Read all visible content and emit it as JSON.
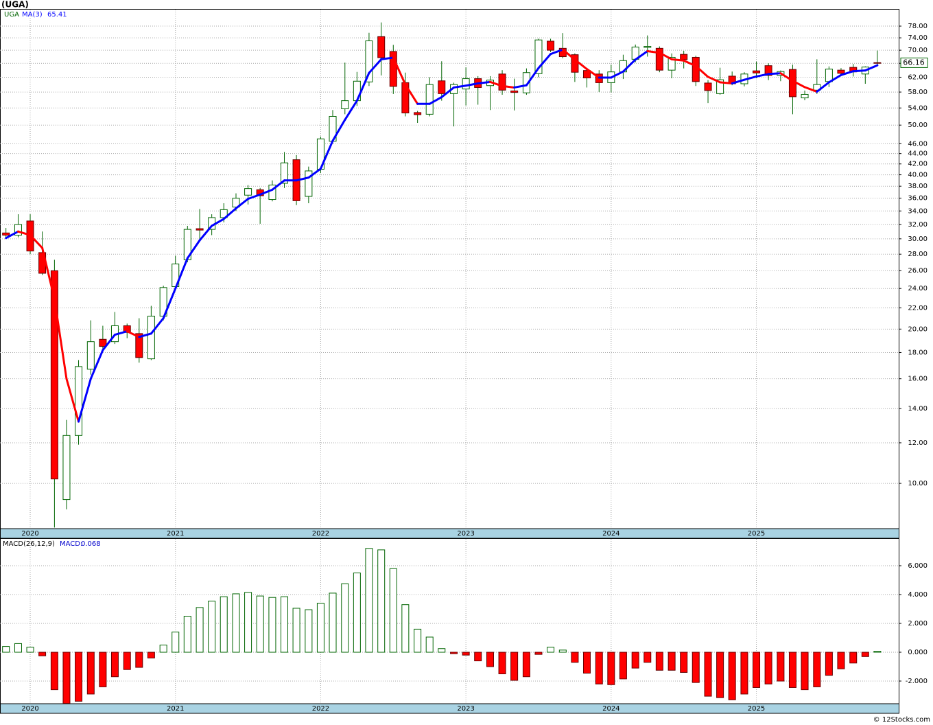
{
  "chart_data": [
    {
      "type": "candlestick",
      "title": "(UGA)",
      "name": "UGA",
      "log_y": true,
      "grid": true,
      "up_color": "#006400",
      "down_color": "#ff0000",
      "x": [
        2019.833,
        2019.917,
        2020.0,
        2020.083,
        2020.167,
        2020.25,
        2020.333,
        2020.417,
        2020.5,
        2020.583,
        2020.667,
        2020.75,
        2020.833,
        2020.917,
        2021.0,
        2021.083,
        2021.167,
        2021.25,
        2021.333,
        2021.417,
        2021.5,
        2021.583,
        2021.667,
        2021.75,
        2021.833,
        2021.917,
        2022.0,
        2022.083,
        2022.167,
        2022.25,
        2022.333,
        2022.417,
        2022.5,
        2022.583,
        2022.667,
        2022.75,
        2022.833,
        2022.917,
        2023.0,
        2023.083,
        2023.167,
        2023.25,
        2023.333,
        2023.417,
        2023.5,
        2023.583,
        2023.667,
        2023.75,
        2023.833,
        2023.917,
        2024.0,
        2024.083,
        2024.167,
        2024.25,
        2024.333,
        2024.417,
        2024.5,
        2024.583,
        2024.667,
        2024.75,
        2024.833,
        2024.917,
        2025.0,
        2025.083,
        2025.167,
        2025.25,
        2025.333,
        2025.417,
        2025.5,
        2025.583,
        2025.667,
        2025.75,
        2025.833
      ],
      "open": [
        30.8,
        30.5,
        32.5,
        28.2,
        26,
        9.3,
        12.4,
        16.7,
        19.1,
        18.9,
        20.3,
        19.6,
        17.5,
        21.2,
        24.2,
        27.3,
        31.4,
        31.3,
        33.0,
        34.6,
        36.5,
        37.4,
        35.8,
        38.5,
        42.8,
        36.3,
        41,
        46.5,
        53.8,
        55.8,
        60.7,
        74.4,
        69.6,
        60.5,
        52.9,
        52.5,
        61,
        57.6,
        58.8,
        61.6,
        59.7,
        62.9,
        58.3,
        57.8,
        63,
        72.9,
        70.6,
        68.6,
        63.9,
        62.9,
        60.5,
        63.5,
        67.2,
        70.9,
        70.6,
        64,
        68.7,
        67.8,
        60.4,
        57.6,
        62.3,
        60.2,
        63.8,
        65.3,
        62.5,
        64.2,
        56.5,
        58.5,
        60.8,
        64.0,
        64.8,
        62.9,
        66.2
      ],
      "high": [
        31.5,
        33.5,
        33.5,
        31,
        27.3,
        13.3,
        17.4,
        20.8,
        20.3,
        21.6,
        20.5,
        21,
        22.2,
        24.3,
        27.8,
        31.8,
        34.3,
        33.5,
        35.2,
        36.8,
        38.2,
        37.7,
        39.0,
        44.3,
        43.7,
        41.5,
        47.5,
        53.5,
        66.2,
        63.5,
        75.7,
        79.3,
        71.7,
        63.3,
        53.3,
        62,
        66.6,
        60.5,
        64.8,
        62.3,
        62.3,
        64,
        61.6,
        64.5,
        73.7,
        73.7,
        75.6,
        69,
        64.5,
        64,
        65.6,
        68.6,
        71.8,
        74.8,
        71.2,
        69,
        69.8,
        68.3,
        61.2,
        64.7,
        63.6,
        63.4,
        66.5,
        66,
        63.9,
        65.6,
        58.4,
        67.2,
        65.1,
        64.6,
        65.8,
        65.1,
        69.9
      ],
      "low": [
        30.0,
        30.2,
        28,
        25.5,
        8.2,
        8.9,
        11.9,
        16.3,
        18.2,
        18.7,
        19.2,
        17.2,
        17.4,
        20.8,
        24,
        27.0,
        29.8,
        30.5,
        32.3,
        34,
        35,
        32.1,
        35.5,
        37.7,
        34.9,
        35.2,
        40.3,
        46,
        52.5,
        54.5,
        59.6,
        62.5,
        57.5,
        52,
        50.5,
        52,
        55.8,
        49.7,
        54.6,
        54.8,
        53.5,
        57.3,
        53.4,
        57.3,
        62,
        69.4,
        67.5,
        60.7,
        59.2,
        58,
        57.9,
        61.5,
        66.3,
        68,
        63.4,
        61.7,
        64.5,
        59.6,
        55.2,
        57.3,
        59.8,
        59.5,
        61.7,
        61.2,
        60.9,
        52.5,
        55.9,
        57.5,
        59.3,
        62.7,
        62.2,
        60.2,
        65.2
      ],
      "close": [
        30.5,
        32.0,
        28.4,
        25.7,
        10.2,
        12.4,
        16.9,
        18.9,
        18.5,
        20.3,
        19.7,
        17.6,
        21.2,
        24.1,
        26.8,
        31.3,
        31.2,
        33.0,
        34.2,
        36,
        37.6,
        36.4,
        38.2,
        42.2,
        35.6,
        40.7,
        47,
        52.0,
        55.8,
        60.9,
        73,
        67.7,
        59.5,
        52.8,
        52.4,
        60,
        57.6,
        60,
        61.6,
        59.2,
        61.2,
        58.5,
        57.9,
        63.3,
        73.3,
        70,
        68,
        63.4,
        61.8,
        60.5,
        63.5,
        66.8,
        71,
        71.2,
        64,
        67.8,
        67.1,
        60.8,
        58.4,
        61.3,
        60.2,
        62.9,
        63.2,
        62.5,
        63.6,
        56.8,
        57.4,
        60,
        64.3,
        63.1,
        63.5,
        64.9,
        66.16
      ],
      "series": [
        {
          "name": "MA(3)",
          "color": "#0000ff",
          "down_color": "#ff0000",
          "values": [
            30.1,
            31,
            30.5,
            28.8,
            22.9,
            16.0,
            13.2,
            16,
            18.2,
            19.5,
            19.8,
            19.3,
            19.6,
            21,
            24.0,
            27.5,
            29.8,
            31.8,
            32.8,
            34.4,
            35.9,
            36.6,
            37.4,
            39,
            39,
            39.5,
            41.1,
            46.6,
            51.2,
            55.8,
            63.2,
            67.2,
            67.7,
            60,
            55,
            55,
            56.7,
            59.2,
            59.7,
            60.3,
            60.7,
            59.6,
            59.2,
            59.8,
            64.6,
            68.8,
            70.2,
            67.1,
            64.3,
            61.9,
            61.9,
            63.6,
            67.1,
            69.7,
            69.2,
            67.2,
            66.8,
            65.2,
            62.1,
            60.6,
            60.3,
            61.3,
            62.2,
            62.9,
            63.1,
            61,
            59.3,
            58.1,
            60.6,
            62.6,
            63.7,
            63.9,
            65.41
          ]
        }
      ],
      "xlim": [
        2019.792,
        2025.98
      ],
      "xticks": [
        2020,
        2021,
        2022,
        2023,
        2024,
        2025
      ],
      "ylim": [
        8.16,
        84.0
      ],
      "yticks": [
        {
          "value": 10,
          "label": "10.00"
        },
        {
          "value": 12,
          "label": "12.00"
        },
        {
          "value": 14,
          "label": "14.00"
        },
        {
          "value": 16,
          "label": "16.00"
        },
        {
          "value": 18,
          "label": "18.00"
        },
        {
          "value": 20,
          "label": "20.00"
        },
        {
          "value": 22,
          "label": "22.00"
        },
        {
          "value": 24,
          "label": "24.00"
        },
        {
          "value": 26,
          "label": "26.00"
        },
        {
          "value": 28,
          "label": "28.00"
        },
        {
          "value": 30,
          "label": "30.00"
        },
        {
          "value": 32,
          "label": "32.00"
        },
        {
          "value": 34,
          "label": "34.00"
        },
        {
          "value": 36,
          "label": "36.00"
        },
        {
          "value": 38,
          "label": "38.00"
        },
        {
          "value": 40,
          "label": "40.00"
        },
        {
          "value": 42,
          "label": "42.00"
        },
        {
          "value": 44,
          "label": "44.00"
        },
        {
          "value": 46,
          "label": "46.00"
        },
        {
          "value": 50,
          "label": "50.00"
        },
        {
          "value": 54,
          "label": "54.00"
        },
        {
          "value": 58,
          "label": "58.00"
        },
        {
          "value": 62,
          "label": "62.00"
        },
        {
          "value": 66,
          "label": "66.00"
        },
        {
          "value": 70,
          "label": "70.00"
        },
        {
          "value": 74,
          "label": "74.00"
        },
        {
          "value": 78,
          "label": "78.00"
        }
      ]
    },
    {
      "type": "bar",
      "grid": true,
      "value_caption": "MACD:",
      "series": [
        {
          "name": "MACD(26,12,9)",
          "color": "#006400",
          "down_color": "#ff0000",
          "values": [
            0.4,
            0.6,
            0.35,
            -0.25,
            -2.6,
            -3.55,
            -3.4,
            -2.9,
            -2.4,
            -1.7,
            -1.2,
            -1.05,
            -0.4,
            0.5,
            1.4,
            2.5,
            3.1,
            3.55,
            3.85,
            4.05,
            4.15,
            3.9,
            3.8,
            3.85,
            3.05,
            2.95,
            3.4,
            4.1,
            4.75,
            5.5,
            7.2,
            7.1,
            5.8,
            3.3,
            1.6,
            1.05,
            0.25,
            -0.1,
            -0.2,
            -0.6,
            -1.0,
            -1.5,
            -1.95,
            -1.7,
            -0.15,
            0.35,
            0.15,
            -0.7,
            -1.45,
            -2.2,
            -2.25,
            -1.85,
            -1.1,
            -0.7,
            -1.25,
            -1.25,
            -1.4,
            -2.1,
            -3.05,
            -3.15,
            -3.3,
            -2.9,
            -2.45,
            -2.2,
            -2.0,
            -2.45,
            -2.6,
            -2.4,
            -1.6,
            -1.15,
            -0.75,
            -0.3,
            0.068
          ]
        }
      ],
      "ylim": [
        -3.571,
        7.857
      ],
      "yticks": [
        {
          "value": -2,
          "label": "-2.000"
        },
        {
          "value": 0,
          "label": "0.000"
        },
        {
          "value": 2,
          "label": "2.000"
        },
        {
          "value": 4,
          "label": "4.000"
        },
        {
          "value": 6,
          "label": "6.000"
        }
      ]
    }
  ],
  "footer": "© 12Stocks.com"
}
